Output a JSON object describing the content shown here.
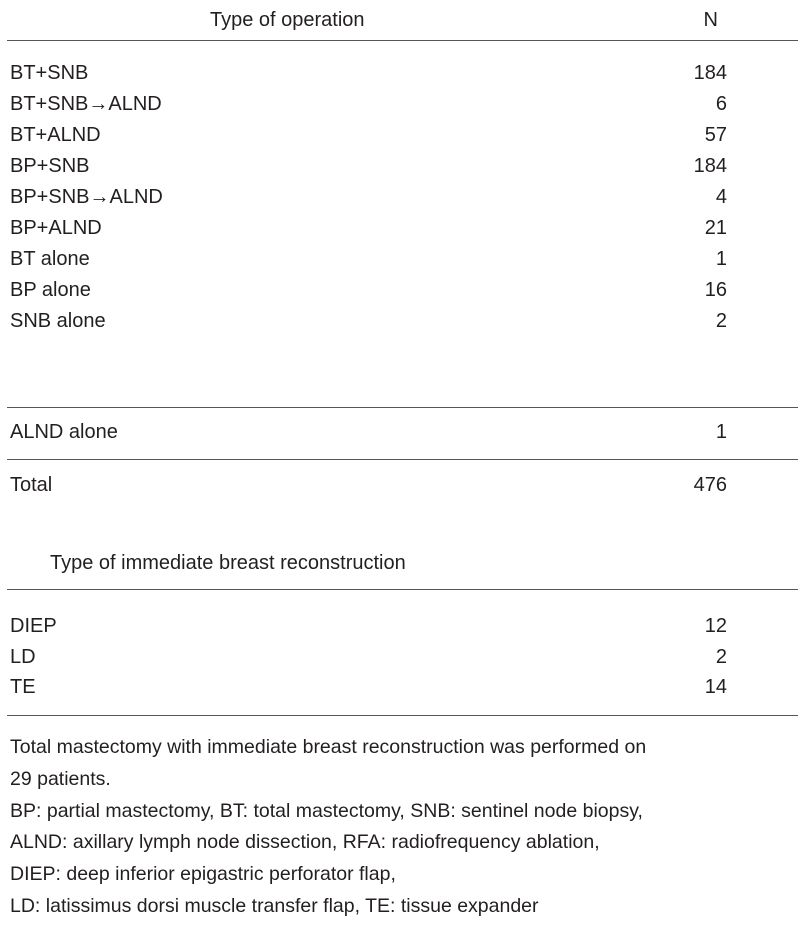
{
  "operation_table": {
    "header": {
      "type": "Type of operation",
      "n": "N"
    },
    "rows": [
      {
        "type": "BT+SNB",
        "n": "184"
      },
      {
        "type": "BT+SNB→ALND",
        "n": "6"
      },
      {
        "type": "BT+ALND",
        "n": "57"
      },
      {
        "type": "BP+SNB",
        "n": "184"
      },
      {
        "type": "BP+SNB→ALND",
        "n": "4"
      },
      {
        "type": "BP+ALND",
        "n": "21"
      },
      {
        "type": "BT alone",
        "n": "1"
      },
      {
        "type": "BP alone",
        "n": "16"
      },
      {
        "type": "SNB alone",
        "n": "2"
      },
      {
        "type": "ALND alone",
        "n": "1"
      },
      {
        "type": "Total",
        "n": "476"
      }
    ]
  },
  "reconstruction_table": {
    "header": "Type of immediate breast reconstruction",
    "rows": [
      {
        "type": "DIEP",
        "n": "12"
      },
      {
        "type": "LD",
        "n": "2"
      },
      {
        "type": "TE",
        "n": "14"
      }
    ]
  },
  "footnotes": [
    "Total mastectomy with immediate breast reconstruction was performed on",
    "29 patients.",
    "BP: partial mastectomy, BT: total mastectomy, SNB: sentinel node biopsy,",
    "ALND: axillary lymph node dissection, RFA: radiofrequency ablation,",
    "DIEP: deep inferior epigastric perforator flap,",
    "LD: latissimus dorsi muscle transfer flap, TE: tissue expander"
  ]
}
